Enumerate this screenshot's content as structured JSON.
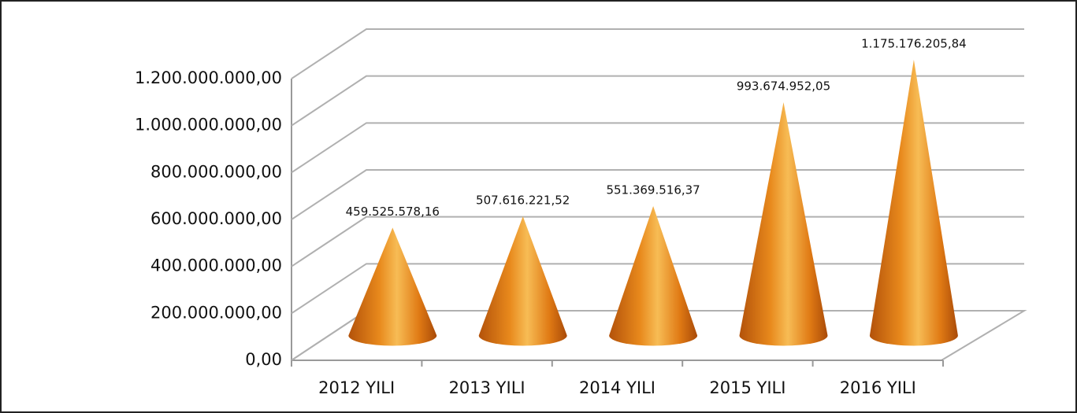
{
  "chart_data": {
    "type": "cone",
    "categories": [
      "2012 YILI",
      "2013 YILI",
      "2014 YILI",
      "2015 YILI",
      "2016 YILI"
    ],
    "values": [
      459525578.16,
      507616221.52,
      551369516.37,
      993674952.05,
      1175176205.84
    ],
    "value_labels": [
      "459.525.578,16",
      "507.616.221,52",
      "551.369.516,37",
      "993.674.952,05",
      "1.175.176.205,84"
    ],
    "color": "#e8891c",
    "ylim": [
      0,
      1200000000
    ],
    "yticks": [
      {
        "value": 0,
        "label": "0,00"
      },
      {
        "value": 200000000,
        "label": "200.000.000,00"
      },
      {
        "value": 400000000,
        "label": "400.000.000,00"
      },
      {
        "value": 600000000,
        "label": "600.000.000,00"
      },
      {
        "value": 800000000,
        "label": "800.000.000,00"
      },
      {
        "value": 1000000000,
        "label": "1.000.000.000,00"
      },
      {
        "value": 1200000000,
        "label": "1.200.000.000,00"
      }
    ],
    "grid": true
  }
}
